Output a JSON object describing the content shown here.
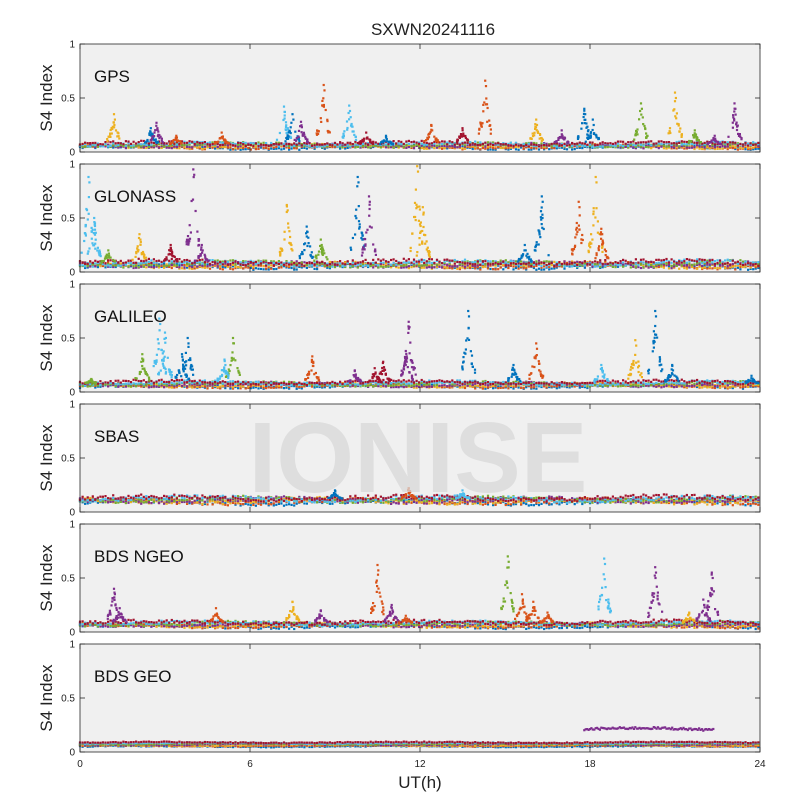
{
  "figure": {
    "title": "SXWN20241116",
    "xlabel": "UT(h)",
    "ylabel": "S4 Index",
    "watermark": "IONISE",
    "x_ticks": [
      0,
      6,
      12,
      18,
      24
    ],
    "y_ticks": [
      0,
      0.5,
      1
    ],
    "y_tick_labels": [
      "0",
      "0.5",
      "1"
    ],
    "panel_background": "#f0f0f0",
    "colors": [
      "#0072BD",
      "#D95319",
      "#EDB120",
      "#7E2F8E",
      "#77AC30",
      "#4DBEEE",
      "#A2142F"
    ]
  },
  "chart_data": [
    {
      "type": "scatter",
      "panel": "GPS",
      "title": "",
      "xlabel": "",
      "ylabel": "S4 Index",
      "xlim": [
        0,
        24
      ],
      "ylim": [
        0,
        1
      ],
      "grid": true,
      "baseline": 0.06,
      "noise": 0.03,
      "spikes": [
        [
          1.2,
          0.35,
          2
        ],
        [
          2.5,
          0.22,
          0
        ],
        [
          2.7,
          0.27,
          3
        ],
        [
          3.4,
          0.15,
          1
        ],
        [
          5.0,
          0.18,
          1
        ],
        [
          7.2,
          0.42,
          5
        ],
        [
          7.5,
          0.35,
          0
        ],
        [
          7.8,
          0.28,
          3
        ],
        [
          8.6,
          0.62,
          1
        ],
        [
          9.5,
          0.43,
          5
        ],
        [
          10.1,
          0.18,
          6
        ],
        [
          10.8,
          0.15,
          0
        ],
        [
          12.4,
          0.25,
          1
        ],
        [
          13.5,
          0.22,
          6
        ],
        [
          14.3,
          0.66,
          1
        ],
        [
          16.1,
          0.3,
          2
        ],
        [
          17.0,
          0.2,
          3
        ],
        [
          17.8,
          0.4,
          0
        ],
        [
          18.1,
          0.3,
          0
        ],
        [
          19.8,
          0.45,
          4
        ],
        [
          21.0,
          0.55,
          2
        ],
        [
          21.7,
          0.2,
          4
        ],
        [
          22.4,
          0.15,
          3
        ],
        [
          23.1,
          0.45,
          3
        ]
      ]
    },
    {
      "type": "scatter",
      "panel": "GLONASS",
      "title": "",
      "xlabel": "",
      "ylabel": "S4 Index",
      "xlim": [
        0,
        24
      ],
      "ylim": [
        0,
        1
      ],
      "grid": true,
      "baseline": 0.07,
      "noise": 0.04,
      "spikes": [
        [
          0.3,
          0.88,
          5
        ],
        [
          0.5,
          0.5,
          5
        ],
        [
          1.0,
          0.2,
          4
        ],
        [
          2.1,
          0.35,
          2
        ],
        [
          3.2,
          0.25,
          6
        ],
        [
          4.0,
          0.95,
          3
        ],
        [
          4.3,
          0.25,
          3
        ],
        [
          7.3,
          0.62,
          2
        ],
        [
          8.0,
          0.42,
          0
        ],
        [
          8.5,
          0.3,
          4
        ],
        [
          9.8,
          0.88,
          0
        ],
        [
          10.2,
          0.7,
          3
        ],
        [
          11.9,
          0.98,
          2
        ],
        [
          12.1,
          0.6,
          2
        ],
        [
          15.7,
          0.25,
          0
        ],
        [
          16.3,
          0.7,
          0
        ],
        [
          17.6,
          0.65,
          1
        ],
        [
          18.2,
          0.88,
          2
        ],
        [
          18.4,
          0.4,
          1
        ]
      ]
    },
    {
      "type": "scatter",
      "panel": "GALILEO",
      "title": "",
      "xlabel": "",
      "ylabel": "S4 Index",
      "xlim": [
        0,
        24
      ],
      "ylim": [
        0,
        1
      ],
      "grid": true,
      "baseline": 0.07,
      "noise": 0.03,
      "spikes": [
        [
          0.4,
          0.12,
          4
        ],
        [
          2.2,
          0.35,
          4
        ],
        [
          2.8,
          0.68,
          5
        ],
        [
          3.0,
          0.55,
          5
        ],
        [
          3.6,
          0.35,
          0
        ],
        [
          3.8,
          0.5,
          0
        ],
        [
          5.4,
          0.5,
          4
        ],
        [
          5.1,
          0.3,
          5
        ],
        [
          8.2,
          0.33,
          1
        ],
        [
          9.7,
          0.2,
          3
        ],
        [
          10.4,
          0.22,
          6
        ],
        [
          10.7,
          0.28,
          6
        ],
        [
          11.5,
          0.38,
          3
        ],
        [
          11.6,
          0.65,
          3
        ],
        [
          13.7,
          0.75,
          0
        ],
        [
          15.3,
          0.25,
          0
        ],
        [
          16.1,
          0.45,
          1
        ],
        [
          18.4,
          0.25,
          5
        ],
        [
          19.6,
          0.48,
          2
        ],
        [
          20.3,
          0.75,
          0
        ],
        [
          20.9,
          0.25,
          0
        ],
        [
          23.7,
          0.15,
          0
        ]
      ]
    },
    {
      "type": "scatter",
      "panel": "SBAS",
      "title": "",
      "xlabel": "",
      "ylabel": "S4 Index",
      "xlim": [
        0,
        24
      ],
      "ylim": [
        0,
        1
      ],
      "grid": true,
      "baseline": 0.11,
      "noise": 0.04,
      "spikes": [
        [
          11.6,
          0.22,
          1
        ],
        [
          13.5,
          0.2,
          5
        ],
        [
          9.0,
          0.2,
          0
        ]
      ]
    },
    {
      "type": "scatter",
      "panel": "BDS NGEO",
      "title": "",
      "xlabel": "",
      "ylabel": "S4 Index",
      "xlim": [
        0,
        24
      ],
      "ylim": [
        0,
        1
      ],
      "grid": true,
      "baseline": 0.07,
      "noise": 0.03,
      "spikes": [
        [
          1.2,
          0.4,
          3
        ],
        [
          1.4,
          0.22,
          3
        ],
        [
          4.8,
          0.22,
          1
        ],
        [
          7.5,
          0.28,
          2
        ],
        [
          8.5,
          0.2,
          3
        ],
        [
          10.5,
          0.62,
          1
        ],
        [
          11.0,
          0.25,
          3
        ],
        [
          11.5,
          0.15,
          1
        ],
        [
          15.1,
          0.7,
          4
        ],
        [
          15.6,
          0.35,
          1
        ],
        [
          16.0,
          0.28,
          1
        ],
        [
          16.5,
          0.18,
          1
        ],
        [
          18.5,
          0.68,
          5
        ],
        [
          20.3,
          0.6,
          3
        ],
        [
          21.5,
          0.18,
          2
        ],
        [
          22.3,
          0.55,
          3
        ],
        [
          22.0,
          0.3,
          3
        ]
      ]
    },
    {
      "type": "scatter",
      "panel": "BDS GEO",
      "title": "",
      "xlabel": "",
      "ylabel": "S4 Index",
      "xlim": [
        0,
        24
      ],
      "ylim": [
        0,
        1
      ],
      "grid": true,
      "baseline": 0.07,
      "noise": 0.01,
      "spikes": [],
      "segment": {
        "x": [
          17.8,
          22.4
        ],
        "y": 0.21,
        "series": 3
      }
    }
  ]
}
